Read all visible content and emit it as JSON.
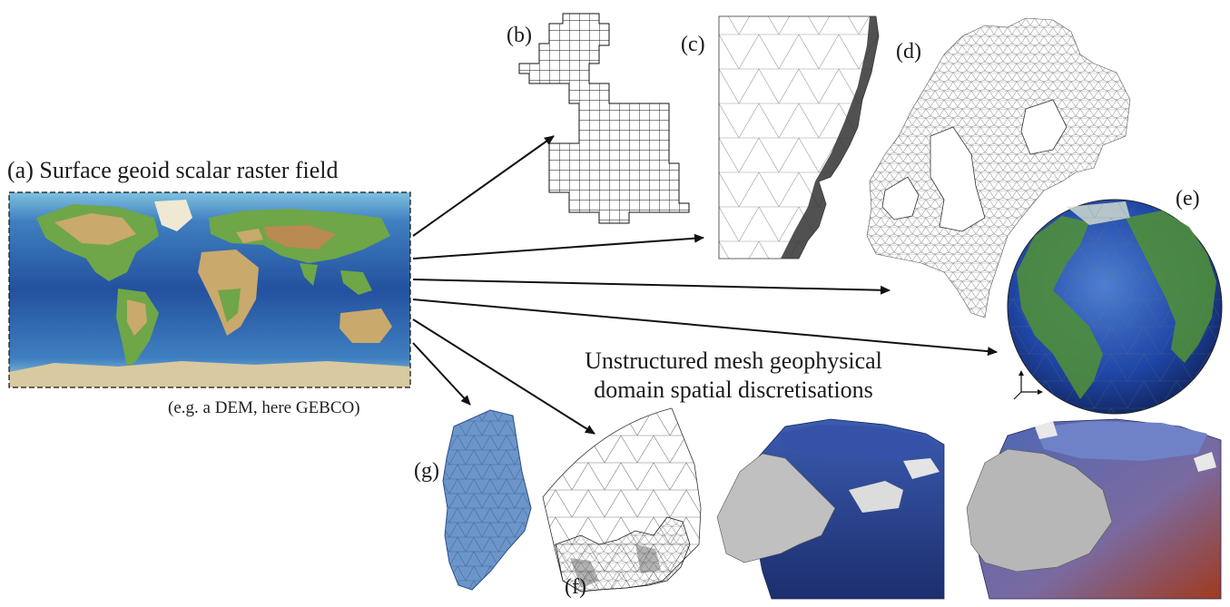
{
  "labels": {
    "a_prefix": "(a)",
    "a_title": "Surface geoid scalar raster field",
    "a_note": "(e.g. a DEM, here GEBCO)",
    "b": "(b)",
    "c": "(c)",
    "d": "(d)",
    "e": "(e)",
    "f": "(f)",
    "g": "(g)"
  },
  "center_caption": {
    "line1": "Unstructured mesh geophysical",
    "line2": "domain spatial discretisations"
  },
  "colors": {
    "ocean_deep": "#1f3f8f",
    "ocean_shelf": "#5f9fd0",
    "land_green": "#5a9a3a",
    "land_tan": "#c8a670",
    "ice": "#e8e2c8",
    "mesh_line": "#222222",
    "greenland_fill": "#6d96c8",
    "volume_blue": "#2a3f8a",
    "volume_grey": "#b7b7b7",
    "volume_red": "#8a2a1a"
  }
}
